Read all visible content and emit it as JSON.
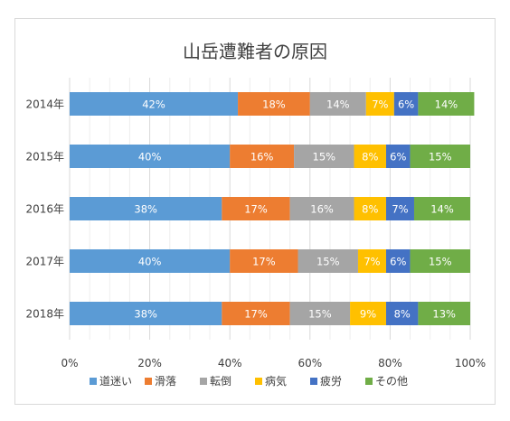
{
  "chart_data": {
    "type": "bar",
    "orientation": "horizontal",
    "stacked": "percent",
    "title": "山岳遭難者の原因",
    "categories": [
      "2014年",
      "2015年",
      "2016年",
      "2017年",
      "2018年"
    ],
    "series": [
      {
        "name": "道迷い",
        "color": "#5b9bd5",
        "values": [
          42,
          40,
          38,
          40,
          38
        ],
        "labels": [
          "42%",
          "40%",
          "38%",
          "40%",
          "38%"
        ]
      },
      {
        "name": "滑落",
        "color": "#ed7d31",
        "values": [
          18,
          16,
          17,
          17,
          17
        ],
        "labels": [
          "18%",
          "16%",
          "17%",
          "17%",
          "17%"
        ]
      },
      {
        "name": "転倒",
        "color": "#a5a5a5",
        "values": [
          14,
          15,
          16,
          15,
          15
        ],
        "labels": [
          "14%",
          "15%",
          "16%",
          "15%",
          "15%"
        ]
      },
      {
        "name": "病気",
        "color": "#ffc000",
        "values": [
          7,
          8,
          8,
          7,
          9
        ],
        "labels": [
          "7%",
          "8%",
          "8%",
          "7%",
          "9%"
        ]
      },
      {
        "name": "疲労",
        "color": "#4472c4",
        "values": [
          6,
          6,
          7,
          6,
          8
        ],
        "labels": [
          "6%",
          "6%",
          "7%",
          "6%",
          "8%"
        ]
      },
      {
        "name": "その他",
        "color": "#70ad47",
        "values": [
          14,
          15,
          14,
          15,
          13
        ],
        "labels": [
          "14%",
          "15%",
          "14%",
          "15%",
          "13%"
        ]
      }
    ],
    "xlim": [
      0,
      100
    ],
    "xticks": [
      "0%",
      "20%",
      "40%",
      "60%",
      "80%",
      "100%"
    ],
    "grid": true,
    "legend_position": "bottom"
  }
}
